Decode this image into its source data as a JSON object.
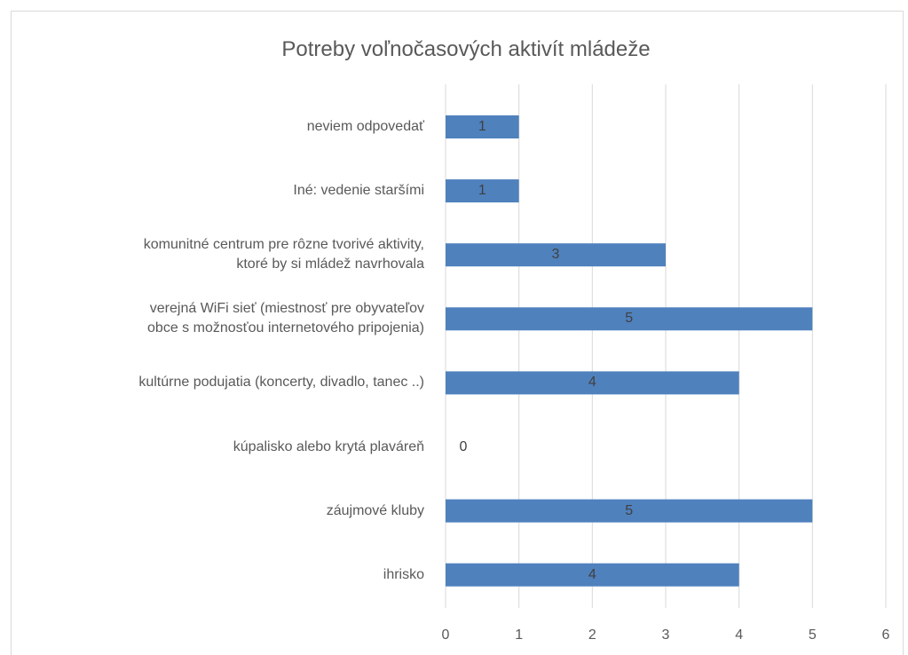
{
  "chart_data": {
    "type": "bar",
    "orientation": "horizontal",
    "title": "Potreby voľnočasových aktivít mládeže",
    "categories": [
      "neviem odpovedať",
      "Iné: vedenie staršími",
      "komunitné centrum pre rôzne tvorivé aktivity,\nktoré by si mládež navrhovala",
      "verejná WiFi sieť (miestnosť pre obyvateľov\nobce s možnosťou internetového pripojenia)",
      "kultúrne podujatia (koncerty, divadlo, tanec ..)",
      "kúpalisko alebo krytá plaváreň",
      "záujmové kluby",
      "ihrisko"
    ],
    "values": [
      1,
      1,
      3,
      5,
      4,
      0,
      5,
      4
    ],
    "color": "#4f81bd",
    "xlim": [
      0,
      6
    ],
    "xticks": [
      0,
      1,
      2,
      3,
      4,
      5,
      6
    ],
    "grid": true
  }
}
